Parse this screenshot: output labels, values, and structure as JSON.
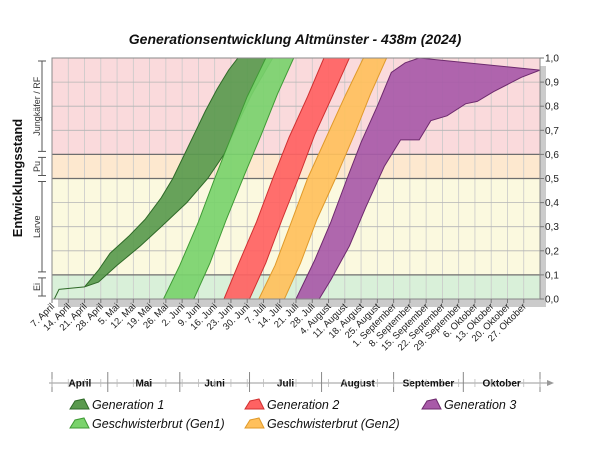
{
  "chart_data": {
    "type": "area",
    "title": "Generationsentwicklung Altmünster - 438m (2024)",
    "ylabel": "Entwicklungsstand",
    "ylim": [
      0.0,
      1.0
    ],
    "yticks": [
      "0,0",
      "0,1",
      "0,2",
      "0,3",
      "0,4",
      "0,5",
      "0,6",
      "0,7",
      "0,8",
      "0,9",
      "1,0"
    ],
    "x_dates": [
      "7. April",
      "14. April",
      "21. April",
      "28. April",
      "5. Mai",
      "12. Mai",
      "19. Mai",
      "26. Mai",
      "2. Juni",
      "9. Juni",
      "16. Juni",
      "23. Juni",
      "30. Juni",
      "7. Juli",
      "14. Juli",
      "21. Juli",
      "28. Juli",
      "4. August",
      "11. August",
      "18. August",
      "25. August",
      "1. September",
      "8. September",
      "15. September",
      "22. September",
      "29. September",
      "6. Oktober",
      "13. Oktober",
      "20. Oktober",
      "27. Oktober"
    ],
    "x_day_range": [
      0,
      210
    ],
    "x_unit": "days since 7. April",
    "months": [
      {
        "name": "April",
        "start": 0,
        "end": 24
      },
      {
        "name": "Mai",
        "start": 24,
        "end": 55
      },
      {
        "name": "Juni",
        "start": 55,
        "end": 85
      },
      {
        "name": "Juli",
        "start": 85,
        "end": 116
      },
      {
        "name": "August",
        "start": 116,
        "end": 147
      },
      {
        "name": "September",
        "start": 147,
        "end": 177
      },
      {
        "name": "Oktober",
        "start": 177,
        "end": 210
      }
    ],
    "stages": [
      {
        "label": "Ei",
        "from": 0.0,
        "to": 0.1,
        "color": "#d9f0d9"
      },
      {
        "label": "Larve",
        "from": 0.1,
        "to": 0.5,
        "color": "#fbf9df"
      },
      {
        "label": "Pu",
        "from": 0.5,
        "to": 0.6,
        "color": "#fde8cf"
      },
      {
        "label": "Jungkäfer / RF",
        "from": 0.6,
        "to": 1.0,
        "color": "#fadadc"
      }
    ],
    "series": [
      {
        "name": "Generation 1",
        "color": "#5a9a4e",
        "edge": "#2f6a28",
        "upper": [
          [
            1,
            0.0
          ],
          [
            3,
            0.04
          ],
          [
            14,
            0.05
          ],
          [
            20,
            0.12
          ],
          [
            25,
            0.19
          ],
          [
            33,
            0.26
          ],
          [
            40,
            0.33
          ],
          [
            47,
            0.42
          ],
          [
            52,
            0.5
          ],
          [
            58,
            0.62
          ],
          [
            66,
            0.78
          ],
          [
            71,
            0.87
          ],
          [
            76,
            0.95
          ],
          [
            80,
            1.0
          ]
        ],
        "lower": [
          [
            95,
            1.0
          ],
          [
            86,
            0.85
          ],
          [
            80,
            0.73
          ],
          [
            74,
            0.6
          ],
          [
            67,
            0.5
          ],
          [
            58,
            0.4
          ],
          [
            47,
            0.3
          ],
          [
            38,
            0.22
          ],
          [
            28,
            0.14
          ],
          [
            20,
            0.07
          ],
          [
            14,
            0.05
          ],
          [
            3,
            0.04
          ],
          [
            1,
            0.0
          ]
        ]
      },
      {
        "name": "Geschwisterbrut (Gen1)",
        "color": "#7ad36c",
        "edge": "#3f9a35",
        "upper": [
          [
            48,
            0.0
          ],
          [
            55,
            0.14
          ],
          [
            63,
            0.32
          ],
          [
            70,
            0.5
          ],
          [
            77,
            0.67
          ],
          [
            84,
            0.84
          ],
          [
            92,
            1.0
          ]
        ],
        "lower": [
          [
            104,
            1.0
          ],
          [
            97,
            0.85
          ],
          [
            90,
            0.68
          ],
          [
            83,
            0.52
          ],
          [
            75,
            0.33
          ],
          [
            68,
            0.15
          ],
          [
            61,
            0.0
          ]
        ]
      },
      {
        "name": "Generation 2",
        "color": "#ff6262",
        "edge": "#d03030",
        "upper": [
          [
            74,
            0.0
          ],
          [
            80,
            0.14
          ],
          [
            88,
            0.32
          ],
          [
            95,
            0.5
          ],
          [
            102,
            0.67
          ],
          [
            110,
            0.84
          ],
          [
            117,
            1.0
          ]
        ],
        "lower": [
          [
            128,
            1.0
          ],
          [
            121,
            0.85
          ],
          [
            113,
            0.68
          ],
          [
            106,
            0.5
          ],
          [
            99,
            0.33
          ],
          [
            92,
            0.15
          ],
          [
            85,
            0.0
          ]
        ]
      },
      {
        "name": "Geschwisterbrut (Gen2)",
        "color": "#ffc05c",
        "edge": "#e09a2a",
        "upper": [
          [
            89,
            0.0
          ],
          [
            96,
            0.14
          ],
          [
            103,
            0.32
          ],
          [
            110,
            0.5
          ],
          [
            118,
            0.67
          ],
          [
            126,
            0.84
          ],
          [
            134,
            1.0
          ]
        ],
        "lower": [
          [
            144,
            1.0
          ],
          [
            137,
            0.85
          ],
          [
            130,
            0.68
          ],
          [
            122,
            0.5
          ],
          [
            114,
            0.33
          ],
          [
            107,
            0.15
          ],
          [
            100,
            0.0
          ]
        ]
      },
      {
        "name": "Generation 3",
        "color": "#a85aa8",
        "edge": "#6e2a6e",
        "upper": [
          [
            105,
            0.0
          ],
          [
            113,
            0.16
          ],
          [
            120,
            0.32
          ],
          [
            127,
            0.5
          ],
          [
            133,
            0.65
          ],
          [
            140,
            0.8
          ],
          [
            146,
            0.94
          ],
          [
            152,
            0.98
          ],
          [
            158,
            1.0
          ]
        ],
        "lower": [
          [
            210,
            0.95
          ],
          [
            202,
            0.92
          ],
          [
            196,
            0.89
          ],
          [
            190,
            0.86
          ],
          [
            183,
            0.82
          ],
          [
            178,
            0.81
          ],
          [
            170,
            0.76
          ],
          [
            163,
            0.74
          ],
          [
            158,
            0.66
          ],
          [
            150,
            0.66
          ],
          [
            143,
            0.55
          ],
          [
            135,
            0.38
          ],
          [
            128,
            0.22
          ],
          [
            120,
            0.08
          ],
          [
            115,
            0.0
          ]
        ]
      }
    ],
    "legend": [
      {
        "name": "Generation 1",
        "color": "#5a9a4e",
        "edge": "#2f6a28"
      },
      {
        "name": "Generation 2",
        "color": "#ff6262",
        "edge": "#d03030"
      },
      {
        "name": "Generation 3",
        "color": "#a85aa8",
        "edge": "#6e2a6e"
      },
      {
        "name": "Geschwisterbrut (Gen1)",
        "color": "#7ad36c",
        "edge": "#3f9a35"
      },
      {
        "name": "Geschwisterbrut (Gen2)",
        "color": "#ffc05c",
        "edge": "#e09a2a"
      }
    ]
  }
}
